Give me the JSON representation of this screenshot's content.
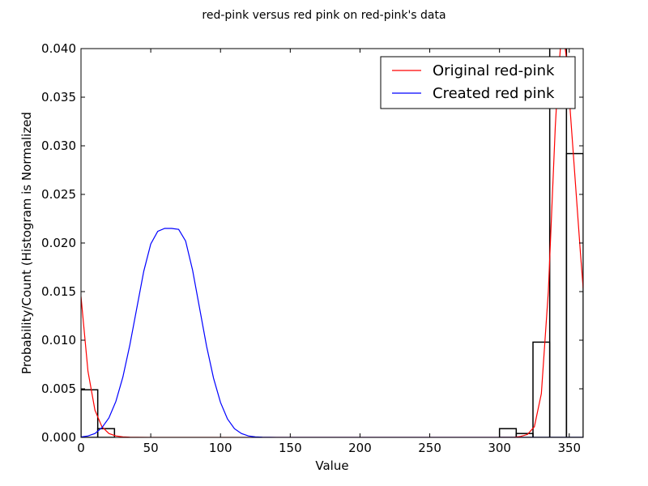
{
  "chart_data": {
    "type": "line",
    "title": "red-pink versus red pink on red-pink's data",
    "xlabel": "Value",
    "ylabel": "Probability/Count (Histogram is Normalized",
    "xlim": [
      0,
      360
    ],
    "ylim": [
      0,
      0.04
    ],
    "xticks": [
      0,
      50,
      100,
      150,
      200,
      250,
      300,
      350
    ],
    "xtick_labels": [
      "0",
      "50",
      "100",
      "150",
      "200",
      "250",
      "300",
      "350"
    ],
    "yticks": [
      0,
      0.005,
      0.01,
      0.015,
      0.02,
      0.025,
      0.03,
      0.035,
      0.04
    ],
    "ytick_labels": [
      "0.000",
      "0.005",
      "0.010",
      "0.015",
      "0.020",
      "0.025",
      "0.030",
      "0.035",
      "0.040"
    ],
    "grid": false,
    "legend_position": "top-right",
    "histogram": {
      "bin_width": 12,
      "bins": [
        {
          "x0": 0,
          "value": 0.0049
        },
        {
          "x0": 12,
          "value": 0.0009
        },
        {
          "x0": 300,
          "value": 0.0009
        },
        {
          "x0": 312,
          "value": 0.0004
        },
        {
          "x0": 324,
          "value": 0.0098
        },
        {
          "x0": 336,
          "value": 0.0465
        },
        {
          "x0": 348,
          "value": 0.0292
        }
      ],
      "color": "#000000"
    },
    "series": [
      {
        "name": "Original red-pink",
        "color": "#ff0000",
        "x": [
          0,
          5,
          10,
          15,
          20,
          25,
          30,
          35,
          40,
          50,
          60,
          300,
          310,
          315,
          320,
          325,
          330,
          335,
          340,
          342,
          345,
          348,
          350,
          352,
          355,
          358,
          360
        ],
        "y": [
          0.0145,
          0.0068,
          0.0028,
          0.0011,
          0.0004,
          0.00015,
          5e-05,
          2e-05,
          1e-05,
          0,
          0,
          0,
          0.0,
          0.0001,
          0.0003,
          0.0011,
          0.0045,
          0.015,
          0.032,
          0.037,
          0.0425,
          0.039,
          0.035,
          0.031,
          0.025,
          0.019,
          0.0153
        ]
      },
      {
        "name": "Created red pink",
        "color": "#0000ff",
        "x": [
          0,
          5,
          10,
          15,
          20,
          25,
          30,
          35,
          40,
          45,
          50,
          55,
          60,
          65,
          70,
          75,
          80,
          85,
          90,
          95,
          100,
          105,
          110,
          115,
          120,
          125,
          130,
          140,
          150,
          200,
          250,
          300,
          360
        ],
        "y": [
          4e-05,
          0.00015,
          0.0004,
          0.001,
          0.002,
          0.0037,
          0.0062,
          0.0095,
          0.0133,
          0.0171,
          0.0199,
          0.0212,
          0.0215,
          0.0215,
          0.0214,
          0.0202,
          0.0172,
          0.0133,
          0.0094,
          0.0061,
          0.0036,
          0.0019,
          0.0009,
          0.0004,
          0.00015,
          5e-05,
          2e-05,
          0,
          0,
          0,
          0,
          0,
          0
        ]
      }
    ]
  }
}
